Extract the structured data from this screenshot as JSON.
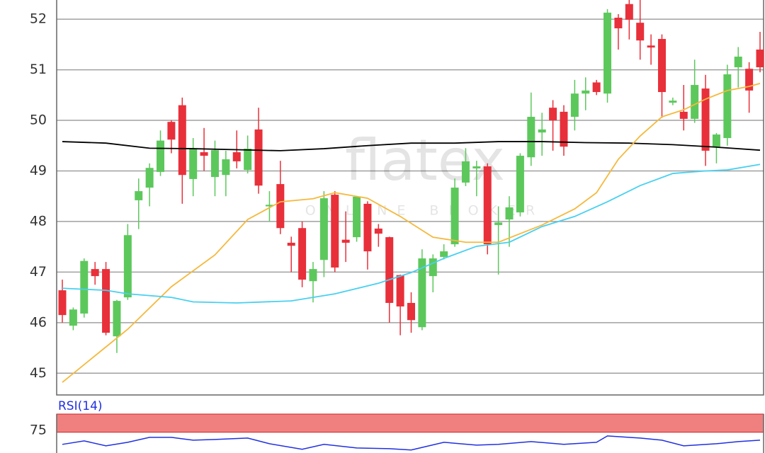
{
  "chart_data": {
    "type": "candlestick",
    "open": [
      46.64,
      45.94,
      46.18,
      47.06,
      47.06,
      45.73,
      46.5,
      48.42,
      48.67,
      48.98,
      49.97,
      50.3,
      48.84,
      49.37,
      48.88,
      48.92,
      49.37,
      49.02,
      49.82,
      48.3,
      48.74,
      47.58,
      47.87,
      46.82,
      47.24,
      48.53,
      47.64,
      47.69,
      48.35,
      47.86,
      47.69,
      46.94,
      46.39,
      45.91,
      46.92,
      47.3,
      47.55,
      48.77,
      49.05,
      49.09,
      47.93,
      48.04,
      48.18,
      49.27,
      49.76,
      50.25,
      50.17,
      50.07,
      50.53,
      50.75,
      50.53,
      52.03,
      52.3,
      51.93,
      51.48,
      51.61,
      50.35,
      50.17,
      50.03,
      50.63,
      49.48,
      49.65,
      51.05,
      51.02,
      51.4
    ],
    "high": [
      46.85,
      46.3,
      47.27,
      47.2,
      47.2,
      46.45,
      47.95,
      48.85,
      49.15,
      49.8,
      50.0,
      50.45,
      49.65,
      49.85,
      49.6,
      49.4,
      49.8,
      49.7,
      50.25,
      48.6,
      49.2,
      47.7,
      48.0,
      47.2,
      48.6,
      48.6,
      48.2,
      48.5,
      48.4,
      47.95,
      47.7,
      46.95,
      46.6,
      47.45,
      47.35,
      47.55,
      48.85,
      49.45,
      49.2,
      49.15,
      48.3,
      48.5,
      49.35,
      50.55,
      50.15,
      50.4,
      50.3,
      50.8,
      50.85,
      50.8,
      52.2,
      52.1,
      52.38,
      52.38,
      51.7,
      51.7,
      50.45,
      50.7,
      51.2,
      50.9,
      49.75,
      51.1,
      51.45,
      51.15,
      51.75
    ],
    "low": [
      46.0,
      45.85,
      46.1,
      46.75,
      45.75,
      45.4,
      46.45,
      47.85,
      48.3,
      48.9,
      49.35,
      48.35,
      48.5,
      49.0,
      48.5,
      48.5,
      49.05,
      48.95,
      48.55,
      48.0,
      47.75,
      47.0,
      46.7,
      46.4,
      46.9,
      47.0,
      47.2,
      47.6,
      47.05,
      47.5,
      46.0,
      45.75,
      45.8,
      45.85,
      46.6,
      47.25,
      47.5,
      48.7,
      48.5,
      47.35,
      46.95,
      47.5,
      48.1,
      49.1,
      49.3,
      49.4,
      49.3,
      49.8,
      50.2,
      50.5,
      50.35,
      51.4,
      51.6,
      51.2,
      51.1,
      50.05,
      50.3,
      49.8,
      49.95,
      49.1,
      49.15,
      49.5,
      50.65,
      50.15,
      50.95
    ],
    "close": [
      46.15,
      46.26,
      47.22,
      46.92,
      45.8,
      46.43,
      47.73,
      48.6,
      49.06,
      49.6,
      49.62,
      48.92,
      49.44,
      49.3,
      49.41,
      49.23,
      49.19,
      49.44,
      48.71,
      48.33,
      47.87,
      47.52,
      46.85,
      47.06,
      48.46,
      47.09,
      47.58,
      48.49,
      47.41,
      47.76,
      46.39,
      46.32,
      46.05,
      47.27,
      47.27,
      47.41,
      48.67,
      49.19,
      49.09,
      47.55,
      47.98,
      48.28,
      49.3,
      50.07,
      49.82,
      50.0,
      49.48,
      50.53,
      50.59,
      50.56,
      52.13,
      51.82,
      51.99,
      51.58,
      51.44,
      50.56,
      50.39,
      50.03,
      50.7,
      49.4,
      49.72,
      50.91,
      51.26,
      50.59,
      51.05
    ],
    "up_color": "#5cc85c",
    "down_color": "#e8303a",
    "ylim": [
      44.57,
      52.38
    ],
    "yticks": [
      45,
      46,
      47,
      48,
      49,
      50,
      51,
      52
    ],
    "grid": true,
    "lines": [
      {
        "color": "#000000",
        "x": [
          0,
          4,
          8,
          12,
          16,
          20,
          24,
          28,
          32,
          36,
          40,
          44,
          48,
          52,
          56,
          60,
          64
        ],
        "values": [
          49.58,
          49.55,
          49.45,
          49.44,
          49.42,
          49.4,
          49.44,
          49.5,
          49.55,
          49.55,
          49.58,
          49.58,
          49.56,
          49.55,
          49.52,
          49.47,
          49.41
        ]
      },
      {
        "color": "#f5b93c",
        "x": [
          0,
          4,
          6,
          10,
          14,
          17,
          20,
          23,
          25,
          28,
          31,
          34,
          37,
          40,
          42,
          44,
          47,
          49,
          51,
          53,
          55,
          57,
          59,
          61,
          63,
          64
        ],
        "values": [
          44.82,
          45.52,
          45.87,
          46.71,
          47.34,
          48.04,
          48.39,
          48.45,
          48.57,
          48.46,
          48.1,
          47.69,
          47.59,
          47.59,
          47.76,
          47.93,
          48.25,
          48.57,
          49.23,
          49.69,
          50.07,
          50.21,
          50.42,
          50.59,
          50.67,
          50.73
        ]
      },
      {
        "color": "#48d0f0",
        "x": [
          0,
          4,
          6,
          10,
          12,
          16,
          21,
          25,
          29,
          32,
          35,
          38,
          41,
          44,
          47,
          50,
          53,
          56,
          59,
          61,
          64
        ],
        "values": [
          46.68,
          46.64,
          46.57,
          46.5,
          46.41,
          46.39,
          46.43,
          46.57,
          46.78,
          46.99,
          47.27,
          47.51,
          47.59,
          47.9,
          48.1,
          48.39,
          48.71,
          48.95,
          49.0,
          49.02,
          49.13
        ]
      }
    ],
    "watermark": {
      "title": "flatex",
      "subtitle": "ONLINE BROKER"
    },
    "indicator": {
      "label": "RSI(14)",
      "color": "#2030e0",
      "band": [
        72,
        100
      ],
      "band_color": "#f08080",
      "ylim": [
        40,
        100
      ],
      "yticks": [
        75
      ],
      "x": [
        0,
        2,
        4,
        6,
        8,
        10,
        12,
        14,
        17,
        19,
        22,
        24,
        27,
        30,
        32,
        35,
        38,
        40,
        43,
        46,
        49,
        50,
        53,
        55,
        57,
        60,
        62,
        64
      ],
      "values": [
        53.3,
        58.7,
        51.1,
        56.5,
        64.1,
        64.1,
        59.8,
        60.9,
        63.0,
        54.3,
        45.7,
        53.3,
        47.8,
        46.7,
        44.6,
        56.5,
        52.2,
        53.3,
        57.6,
        53.3,
        56.5,
        66.3,
        63.0,
        59.8,
        51.1,
        54.3,
        57.6,
        59.8
      ]
    }
  }
}
